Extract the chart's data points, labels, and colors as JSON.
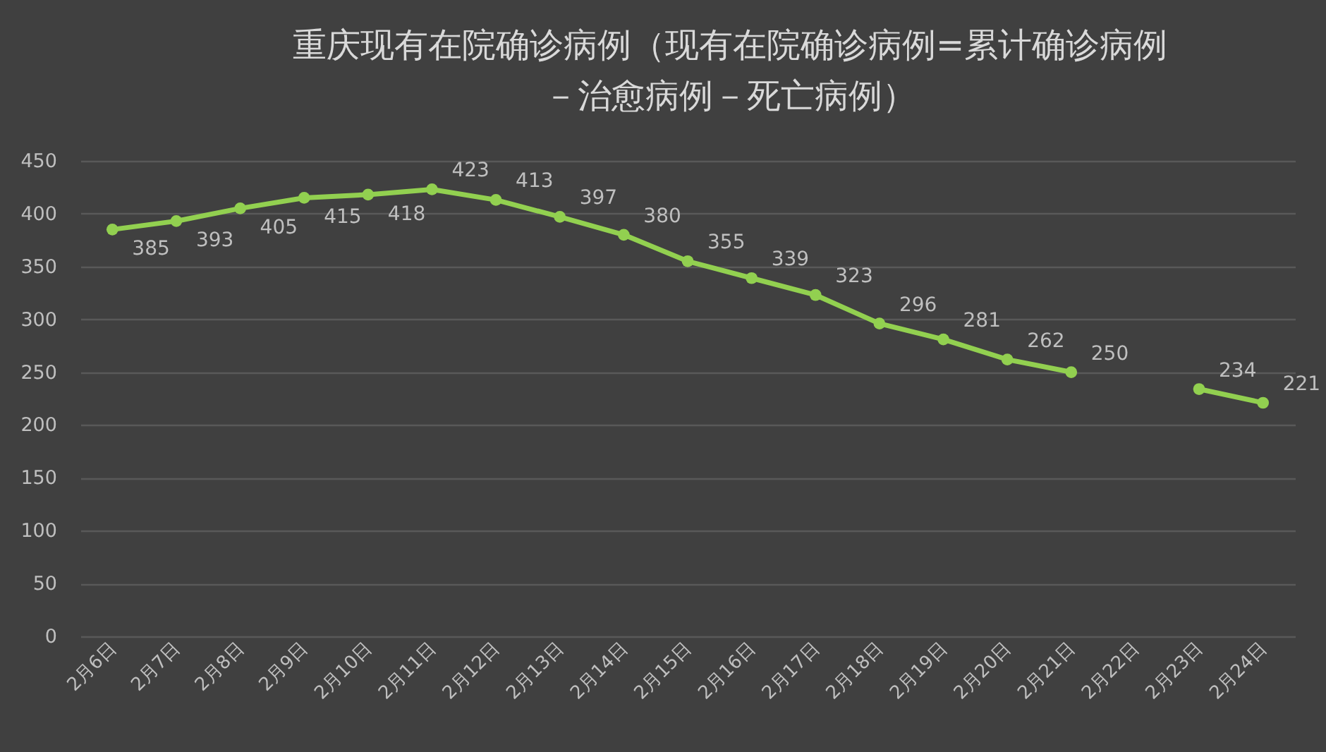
{
  "chart_data": {
    "type": "line",
    "title": "重庆现有在院确诊病例（现有在院确诊病例=累计确诊病例－治愈病例－死亡病例）",
    "categories": [
      "2月6日",
      "2月7日",
      "2月8日",
      "2月9日",
      "2月10日",
      "2月11日",
      "2月12日",
      "2月13日",
      "2月14日",
      "2月15日",
      "2月16日",
      "2月17日",
      "2月18日",
      "2月19日",
      "2月20日",
      "2月21日",
      "2月22日",
      "2月23日",
      "2月24日"
    ],
    "series": [
      {
        "color": "#92d050",
        "values": [
          385,
          393,
          405,
          415,
          418,
          423,
          413,
          397,
          380,
          355,
          339,
          323,
          296,
          281,
          262,
          250,
          null,
          234,
          221
        ]
      }
    ],
    "ylim": [
      0,
      450
    ],
    "yticks": [
      0,
      50,
      100,
      150,
      200,
      250,
      300,
      350,
      400,
      450
    ],
    "grid": "y",
    "data_labels": true,
    "marker": "circle",
    "line_style": "solid"
  }
}
